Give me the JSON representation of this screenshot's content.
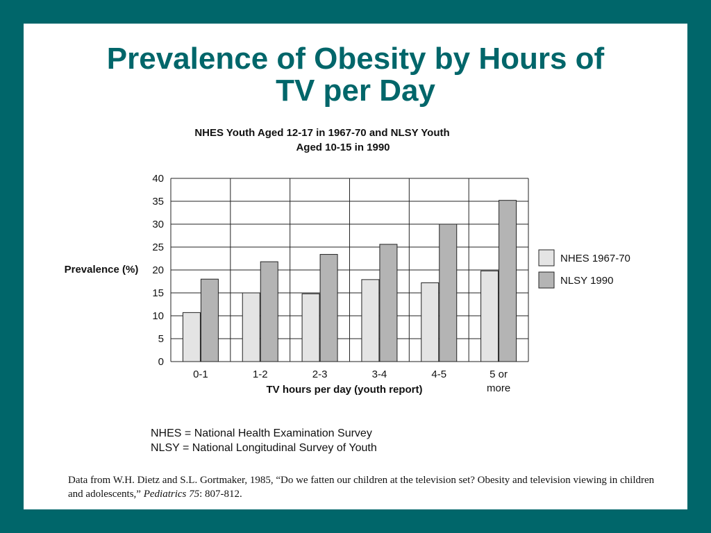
{
  "slide": {
    "title_line1": "Prevalence of Obesity by Hours of",
    "title_line2": "TV per Day",
    "background_color": "#00666a",
    "title_color": "#00666a"
  },
  "chart_data": {
    "type": "bar",
    "title_line1": "NHES Youth Aged 12-17 in 1967-70 and NLSY Youth",
    "title_line2": "Aged 10-15 in 1990",
    "xlabel": "TV hours per day (youth report)",
    "ylabel": "Prevalence (%)",
    "ylim": [
      0,
      40
    ],
    "yticks": [
      "0",
      "5",
      "10",
      "15",
      "20",
      "25",
      "30",
      "35",
      "40"
    ],
    "categories": [
      [
        "0-1"
      ],
      [
        "1-2"
      ],
      [
        "2-3"
      ],
      [
        "3-4"
      ],
      [
        "4-5"
      ],
      [
        "5 or",
        "more"
      ]
    ],
    "series": [
      {
        "name": "NHES 1967-70",
        "values": [
          10.7,
          15,
          14.8,
          17.9,
          17.2,
          19.8
        ],
        "color": "#e4e4e4"
      },
      {
        "name": "NLSY 1990",
        "values": [
          18,
          21.8,
          23.4,
          25.6,
          30,
          35.2
        ],
        "color": "#b4b4b4"
      }
    ],
    "grid": true,
    "legend_position": "right"
  },
  "notes": [
    "NHES = National Health Examination Survey",
    "NLSY = National Longitudinal Survey of Youth"
  ],
  "citation": {
    "text_before": "Data from W.H. Dietz and S.L. Gortmaker, 1985, “Do we fatten our children at the television set? Obesity and television viewing in children and adolescents,” ",
    "journal": "Pediatrics 75",
    "text_after": ": 807-812."
  }
}
